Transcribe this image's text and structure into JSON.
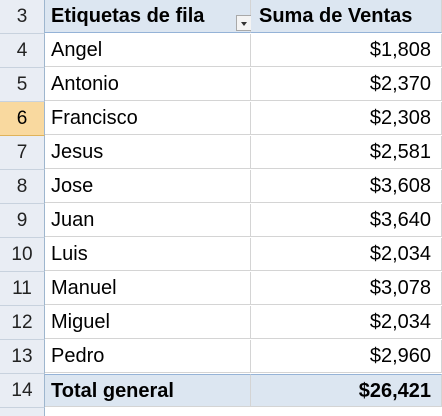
{
  "pivot": {
    "header": {
      "row_number": "3",
      "label": "Etiquetas de fila",
      "value": "Suma de Ventas"
    },
    "rows": [
      {
        "row_number": "4",
        "label": "Angel",
        "value": "$1,808"
      },
      {
        "row_number": "5",
        "label": "Antonio",
        "value": "$2,370"
      },
      {
        "row_number": "6",
        "label": "Francisco",
        "value": "$2,308"
      },
      {
        "row_number": "7",
        "label": "Jesus",
        "value": "$2,581"
      },
      {
        "row_number": "8",
        "label": "Jose",
        "value": "$3,608"
      },
      {
        "row_number": "9",
        "label": "Juan",
        "value": "$3,640"
      },
      {
        "row_number": "10",
        "label": "Luis",
        "value": "$2,034"
      },
      {
        "row_number": "11",
        "label": "Manuel",
        "value": "$3,078"
      },
      {
        "row_number": "12",
        "label": "Miguel",
        "value": "$2,034"
      },
      {
        "row_number": "13",
        "label": "Pedro",
        "value": "$2,960"
      }
    ],
    "total": {
      "row_number": "14",
      "label": "Total general",
      "value": "$26,421"
    },
    "active_row": "6"
  },
  "icons": {
    "filter": "filter-dropdown-icon"
  },
  "colors": {
    "header_fill": "#dce6f1",
    "row_header_fill": "#e9edf4",
    "active_row_header_fill": "#f9d99f"
  }
}
